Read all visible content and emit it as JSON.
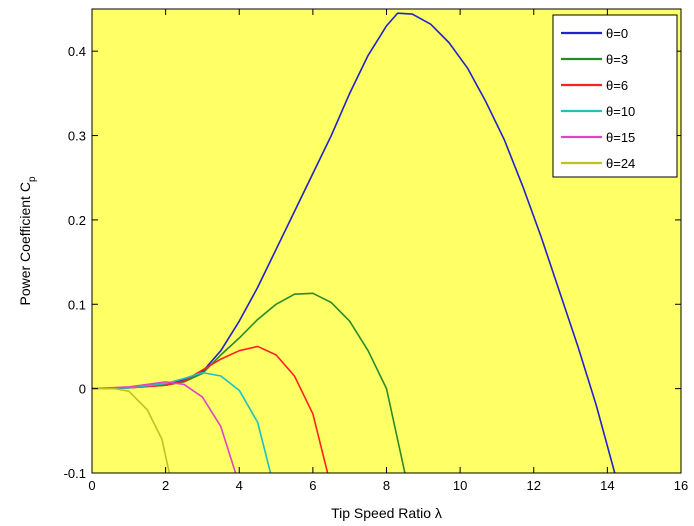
{
  "chart_data": {
    "type": "line",
    "title": "",
    "xlabel": "Tip Speed Ratio λ",
    "ylabel_main": "Power Coefficient C",
    "ylabel_sub": "p",
    "xlim": [
      0,
      16
    ],
    "ylim": [
      -0.1,
      0.45
    ],
    "xticks": [
      0,
      2,
      4,
      6,
      8,
      10,
      12,
      14,
      16
    ],
    "yticks": [
      -0.1,
      0,
      0.1,
      0.2,
      0.3,
      0.4
    ],
    "xtick_labels": [
      "0",
      "2",
      "4",
      "6",
      "8",
      "10",
      "12",
      "14",
      "16"
    ],
    "ytick_labels": [
      "-0.1",
      "0",
      "0.1",
      "0.2",
      "0.3",
      "0.4"
    ],
    "grid": false,
    "legend_position": "top-right",
    "plot_background": "#ffff66",
    "series": [
      {
        "name": "θ=0",
        "color": "#2222cc",
        "points": [
          [
            0,
            0
          ],
          [
            1,
            0.001
          ],
          [
            2,
            0.005
          ],
          [
            2.5,
            0.01
          ],
          [
            3,
            0.02
          ],
          [
            3.5,
            0.045
          ],
          [
            4,
            0.08
          ],
          [
            4.5,
            0.12
          ],
          [
            5,
            0.165
          ],
          [
            5.5,
            0.21
          ],
          [
            6,
            0.255
          ],
          [
            6.5,
            0.3
          ],
          [
            7,
            0.35
          ],
          [
            7.5,
            0.395
          ],
          [
            8,
            0.43
          ],
          [
            8.3,
            0.445
          ],
          [
            8.7,
            0.444
          ],
          [
            9.2,
            0.432
          ],
          [
            9.7,
            0.41
          ],
          [
            10.2,
            0.38
          ],
          [
            10.7,
            0.34
          ],
          [
            11.2,
            0.295
          ],
          [
            11.7,
            0.24
          ],
          [
            12.2,
            0.18
          ],
          [
            12.7,
            0.115
          ],
          [
            13.2,
            0.05
          ],
          [
            13.7,
            -0.02
          ],
          [
            14.2,
            -0.1
          ]
        ]
      },
      {
        "name": "θ=3",
        "color": "#2a8a2a",
        "points": [
          [
            0,
            0
          ],
          [
            1,
            0.001
          ],
          [
            2,
            0.004
          ],
          [
            2.5,
            0.008
          ],
          [
            3,
            0.018
          ],
          [
            3.5,
            0.04
          ],
          [
            4,
            0.06
          ],
          [
            4.5,
            0.082
          ],
          [
            5,
            0.1
          ],
          [
            5.5,
            0.112
          ],
          [
            6,
            0.113
          ],
          [
            6.5,
            0.102
          ],
          [
            7,
            0.08
          ],
          [
            7.5,
            0.045
          ],
          [
            8,
            0
          ],
          [
            8.5,
            -0.1
          ]
        ]
      },
      {
        "name": "θ=6",
        "color": "#ff2020",
        "points": [
          [
            0,
            0
          ],
          [
            1,
            0.001
          ],
          [
            2,
            0.004
          ],
          [
            2.5,
            0.009
          ],
          [
            3,
            0.022
          ],
          [
            3.5,
            0.035
          ],
          [
            4,
            0.045
          ],
          [
            4.5,
            0.05
          ],
          [
            5,
            0.04
          ],
          [
            5.5,
            0.015
          ],
          [
            6,
            -0.03
          ],
          [
            6.4,
            -0.1
          ]
        ]
      },
      {
        "name": "θ=10",
        "color": "#20c0c0",
        "points": [
          [
            0,
            0
          ],
          [
            1,
            0.001
          ],
          [
            2,
            0.006
          ],
          [
            2.5,
            0.012
          ],
          [
            3,
            0.019
          ],
          [
            3.5,
            0.015
          ],
          [
            4,
            -0.002
          ],
          [
            4.5,
            -0.04
          ],
          [
            4.85,
            -0.1
          ]
        ]
      },
      {
        "name": "θ=15",
        "color": "#dd44cc",
        "points": [
          [
            0,
            0
          ],
          [
            1,
            0.002
          ],
          [
            1.5,
            0.005
          ],
          [
            2,
            0.008
          ],
          [
            2.5,
            0.005
          ],
          [
            3,
            -0.01
          ],
          [
            3.5,
            -0.045
          ],
          [
            3.9,
            -0.1
          ]
        ]
      },
      {
        "name": "θ=24",
        "color": "#c0c020",
        "points": [
          [
            0,
            0
          ],
          [
            0.6,
            0
          ],
          [
            1,
            -0.003
          ],
          [
            1.5,
            -0.025
          ],
          [
            1.9,
            -0.06
          ],
          [
            2.1,
            -0.1
          ]
        ]
      }
    ]
  }
}
